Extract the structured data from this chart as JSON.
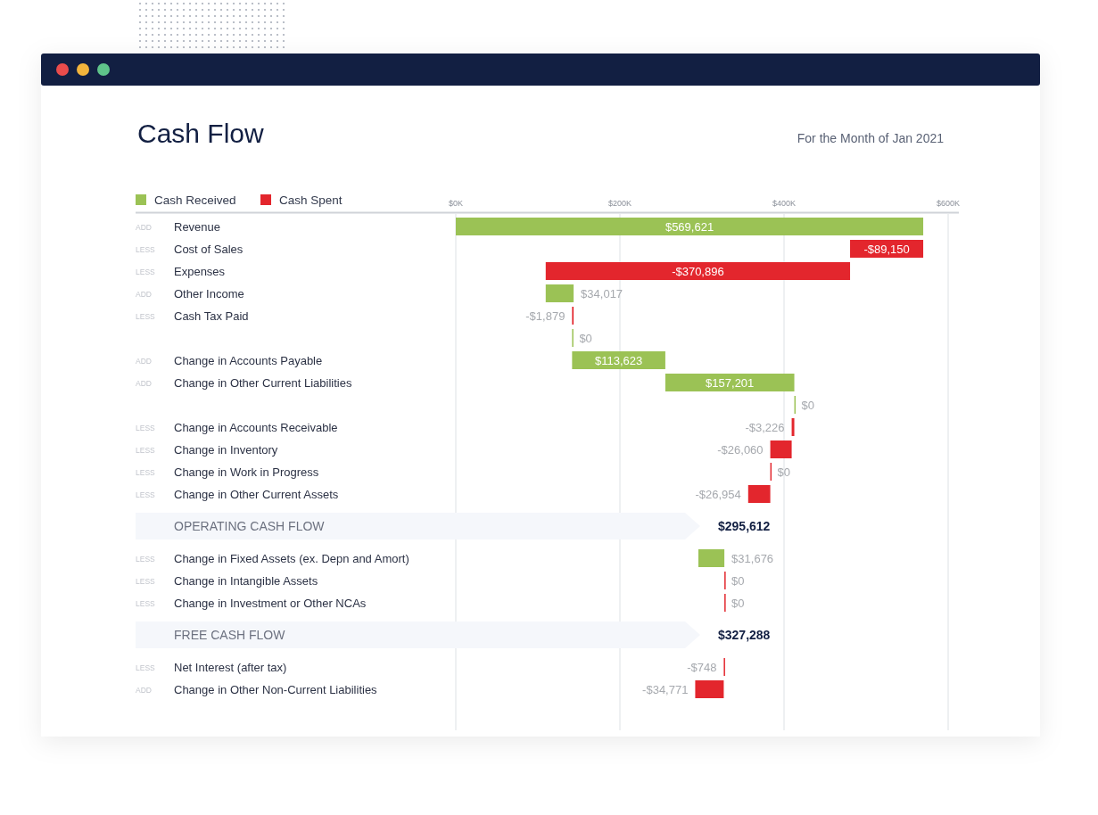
{
  "chart_data": {
    "type": "bar",
    "orientation": "horizontal",
    "title": "Cash Flow",
    "subtitle": "For the Month of Jan 2021",
    "categories": [
      "Revenue",
      "Cost of Sales",
      "Expenses",
      "Other Income",
      "Cash Tax Paid",
      null,
      "Change in Accounts Payable",
      "Change in Other Current Liabilities",
      null,
      "Change in Accounts Receivable",
      "Change in Inventory",
      "Change in Work in Progress",
      "Change in Other Current Assets",
      "OPERATING CASH FLOW",
      "Change in Fixed Assets (ex. Depn and Amort)",
      "Change in Intangible Assets",
      "Change in Investment or Other NCAs",
      "FREE CASH FLOW",
      "Net Interest (after tax)",
      "Change in Other Non-Current Liabilities"
    ],
    "series": [
      {
        "name": "Cash Received",
        "color": "#9bc255",
        "values": [
          569621,
          null,
          null,
          34017,
          null,
          0,
          113623,
          157201,
          0,
          null,
          null,
          null,
          null,
          null,
          31676,
          null,
          null,
          null,
          null,
          null
        ],
        "base": [
          0,
          null,
          null,
          109575,
          null,
          141713,
          141713,
          255336,
          412537,
          null,
          null,
          null,
          null,
          null,
          295612,
          null,
          null,
          null,
          null,
          null
        ],
        "value_labels": [
          "$569,621",
          null,
          null,
          "$34,017",
          null,
          "$0",
          "$113,623",
          "$157,201",
          "$0",
          null,
          null,
          null,
          null,
          null,
          "$31,676",
          null,
          null,
          null,
          null,
          null
        ]
      },
      {
        "name": "Cash Spent",
        "color": "#e3262d",
        "values": [
          null,
          -89150,
          -370896,
          null,
          -1879,
          null,
          null,
          null,
          null,
          -3226,
          -26060,
          0,
          -26954,
          null,
          null,
          0,
          0,
          null,
          -748,
          -34771
        ],
        "base": [
          null,
          569621,
          480471,
          null,
          143592,
          null,
          null,
          null,
          null,
          412537,
          409311,
          383251,
          383251,
          null,
          null,
          327288,
          327288,
          null,
          327288,
          326540
        ],
        "value_labels": [
          null,
          "-$89,150",
          "-$370,896",
          null,
          "-$1,879",
          null,
          null,
          null,
          null,
          "-$3,226",
          "-$26,060",
          "$0",
          "-$26,954",
          null,
          null,
          "$0",
          "$0",
          null,
          "-$748",
          "-$34,771"
        ]
      }
    ],
    "xlim": [
      0,
      600000
    ],
    "xticks": [
      {
        "value": 0,
        "label": "$0K"
      },
      {
        "value": 200000,
        "label": "$200K"
      },
      {
        "value": 400000,
        "label": "$400K"
      },
      {
        "value": 600000,
        "label": "$600K"
      }
    ],
    "grid": "x",
    "legend": "top left",
    "annotations": [
      "ADD",
      "LESS",
      "LESS",
      "ADD",
      "LESS",
      "ADD",
      "ADD",
      "LESS",
      "LESS",
      "LESS",
      "LESS",
      "$295,612",
      "LESS",
      "LESS",
      "LESS",
      "$327,288",
      "LESS",
      "ADD"
    ]
  }
}
